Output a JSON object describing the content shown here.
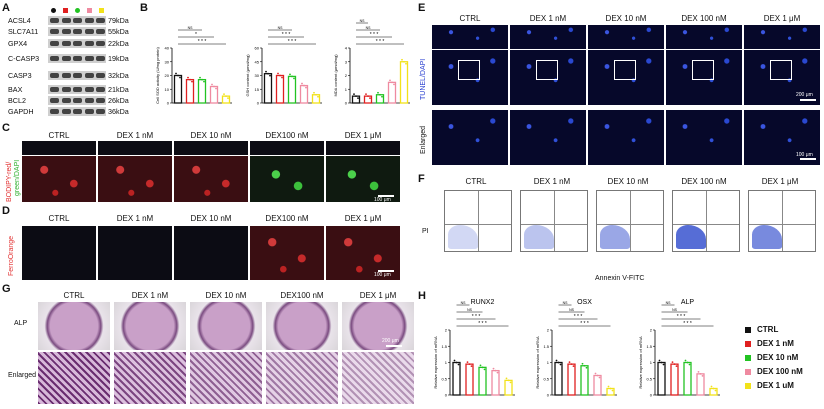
{
  "panel_letters": {
    "A": "A",
    "B": "B",
    "C": "C",
    "D": "D",
    "E": "E",
    "F": "F",
    "G": "G",
    "H": "H"
  },
  "western": {
    "dot_colors": [
      "#111111",
      "#e02020",
      "#22c322",
      "#ef8aa0",
      "#f2e21a"
    ],
    "rows": [
      {
        "name": "ACSL4",
        "kda": "79kDa"
      },
      {
        "name": "SLC7A11",
        "kda": "55kDa"
      },
      {
        "name": "GPX4",
        "kda": "22kDa"
      },
      {
        "name": "C-CASP3",
        "kda": "19kDa"
      },
      {
        "name": "CASP3",
        "kda": "32kDa"
      },
      {
        "name": "BAX",
        "kda": "21kDa"
      },
      {
        "name": "BCL2",
        "kda": "26kDa"
      },
      {
        "name": "GAPDH",
        "kda": "36kDa"
      }
    ]
  },
  "groups_short": [
    "CTRL",
    "DEX 1 nM",
    "DEX 10 nM",
    "DEX100 nM",
    "DEX 1 μM"
  ],
  "groups_E": [
    "CTRL",
    "DEX 1 nM",
    "DEX 10 nM",
    "DEX 100 nM",
    "DEX 1 μM"
  ],
  "groups_F": [
    "CTRL",
    "DEX 1 nM",
    "DEX 10 nM",
    "DEX 100 nM",
    "DEX 1 μM"
  ],
  "panelB": {
    "charts": [
      {
        "ylabel": "Cell SOD activity (U/mg protein)",
        "sig": [
          "* * *",
          "*",
          "NS"
        ]
      },
      {
        "ylabel": "GSH content (μmol/mg)",
        "sig": [
          "* * *",
          "* * *",
          "NS"
        ]
      },
      {
        "ylabel": "MDA content (μmol/mg)",
        "sig": [
          "* * *",
          "* * *",
          "NS",
          "NS"
        ]
      }
    ]
  },
  "panelC": {
    "ylabel_a": "BODIPY-red/",
    "ylabel_b": "green/DAPI",
    "scale": "100 μm"
  },
  "panelD": {
    "ylabel": "FerroOrange",
    "scale": "100 μm"
  },
  "panelE": {
    "row1": "TUNEL/DAPI",
    "row2": "Enlarged",
    "scale1": "200 μm",
    "scale2": "100 μm"
  },
  "panelF": {
    "ylabel": "PI",
    "xlabel": "Annexin V-FITC"
  },
  "panelG": {
    "row1": "ALP",
    "row2": "Enlarged",
    "scale": "200 μm"
  },
  "panelH": {
    "legend": [
      {
        "label": "CTRL",
        "color": "#111111"
      },
      {
        "label": "DEX 1 nM",
        "color": "#e02020"
      },
      {
        "label": "DEX 10 nM",
        "color": "#22c322"
      },
      {
        "label": "DEX 100 nM",
        "color": "#ef8aa0"
      },
      {
        "label": "DEX 1 uM",
        "color": "#f2e21a"
      }
    ],
    "ylabel": "Relative expression of mRNA"
  },
  "chart_data": [
    {
      "type": "bar",
      "title": "",
      "categories": [
        "CTRL",
        "DEX 1 nM",
        "DEX 10 nM",
        "DEX 100 nM",
        "DEX 1 μM"
      ],
      "values": [
        20,
        17,
        17,
        12,
        5
      ],
      "ylabel": "Cell SOD activity (U/mg protein)",
      "ylim": [
        0,
        40
      ]
    },
    {
      "type": "bar",
      "title": "",
      "categories": [
        "CTRL",
        "DEX 1 nM",
        "DEX 10 nM",
        "DEX 100 nM",
        "DEX 1 μM"
      ],
      "values": [
        32,
        30,
        29,
        19,
        9
      ],
      "ylabel": "GSH content (μmol/mg)",
      "ylim": [
        0,
        60
      ]
    },
    {
      "type": "bar",
      "title": "",
      "categories": [
        "CTRL",
        "DEX 1 nM",
        "DEX 10 nM",
        "DEX 100 nM",
        "DEX 1 μM"
      ],
      "values": [
        0.5,
        0.5,
        0.6,
        1.5,
        3.0
      ],
      "ylabel": "MDA content (μmol/mg)",
      "ylim": [
        0,
        4
      ]
    },
    {
      "type": "bar",
      "title": "RUNX2",
      "categories": [
        "CTRL",
        "DEX 1 nM",
        "DEX 10 nM",
        "DEX 100 nM",
        "DEX 1 μM"
      ],
      "values": [
        1.0,
        0.95,
        0.85,
        0.75,
        0.45
      ],
      "ylabel": "Relative expression of mRNA",
      "ylim": [
        0,
        2
      ]
    },
    {
      "type": "bar",
      "title": "OSX",
      "categories": [
        "CTRL",
        "DEX 1 nM",
        "DEX 10 nM",
        "DEX 100 nM",
        "DEX 1 μM"
      ],
      "values": [
        1.0,
        0.95,
        0.9,
        0.6,
        0.2
      ],
      "ylabel": "Relative expression of mRNA",
      "ylim": [
        0,
        2
      ]
    },
    {
      "type": "bar",
      "title": "ALP",
      "categories": [
        "CTRL",
        "DEX 1 nM",
        "DEX 10 nM",
        "DEX 100 nM",
        "DEX 1 μM"
      ],
      "values": [
        1.0,
        0.95,
        1.0,
        0.65,
        0.2
      ],
      "ylabel": "Relative expression of mRNA",
      "ylim": [
        0,
        2
      ]
    }
  ]
}
